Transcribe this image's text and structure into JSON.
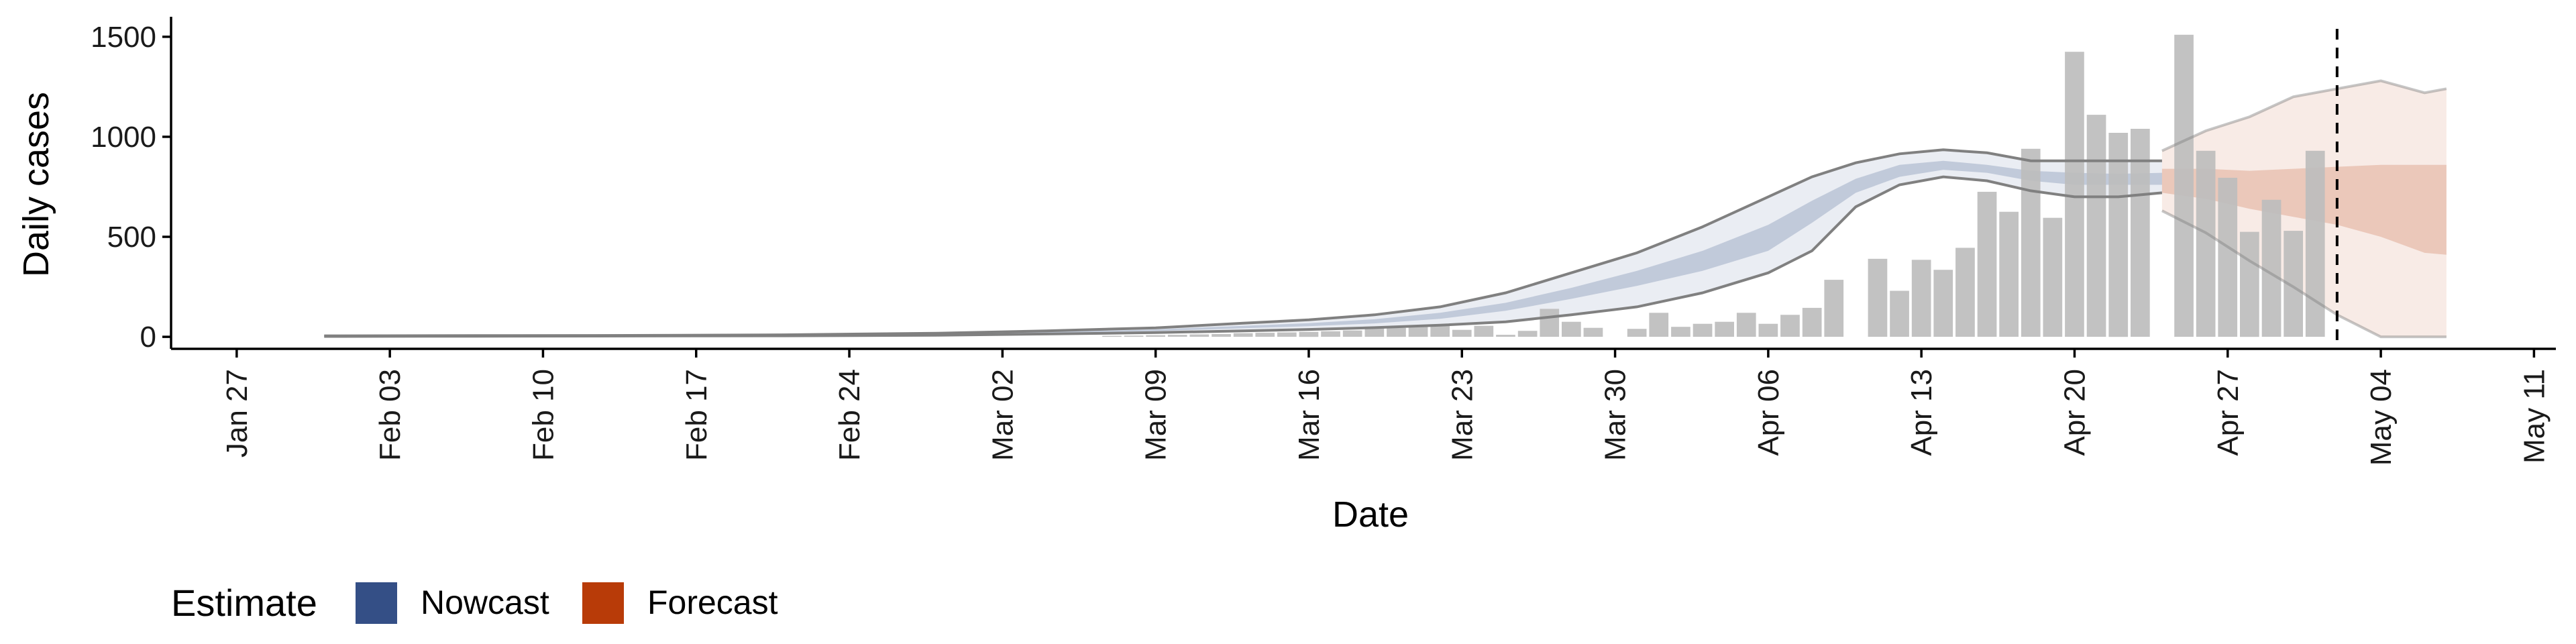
{
  "chart_data": {
    "type": "bar",
    "xlabel": "Date",
    "ylabel": "Daily cases",
    "ylim": [
      -60,
      1600
    ],
    "xlim": [
      "2020-01-24",
      "2020-05-12"
    ],
    "x_ticks": [
      "2020-01-27",
      "2020-02-03",
      "2020-02-10",
      "2020-02-17",
      "2020-02-24",
      "2020-03-02",
      "2020-03-09",
      "2020-03-16",
      "2020-03-23",
      "2020-03-30",
      "2020-04-06",
      "2020-04-13",
      "2020-04-20",
      "2020-04-27",
      "2020-05-04",
      "2020-05-11"
    ],
    "x_tick_labels": [
      "Jan 27",
      "Feb 03",
      "Feb 10",
      "Feb 17",
      "Feb 24",
      "Mar 02",
      "Mar 09",
      "Mar 16",
      "Mar 23",
      "Mar 30",
      "Apr 06",
      "Apr 13",
      "Apr 20",
      "Apr 27",
      "May 04",
      "May 11"
    ],
    "y_ticks": [
      0,
      500,
      1000,
      1500
    ],
    "y_tick_labels": [
      "0",
      "500",
      "1000",
      "1500"
    ],
    "grid": false,
    "legend": {
      "title": "Estimate",
      "position": "bottom-left",
      "items": [
        {
          "label": "Nowcast",
          "color": "#344f86"
        },
        {
          "label": "Forecast",
          "color": "#b83b08"
        }
      ]
    },
    "colors": {
      "bars": "#bdbdbd",
      "nowcast": "#344f86",
      "forecast": "#b83b08",
      "band_edge": "#808080",
      "axis": "#000000"
    },
    "observed_cases": {
      "x": [
        "2020-03-07",
        "2020-03-08",
        "2020-03-09",
        "2020-03-10",
        "2020-03-11",
        "2020-03-12",
        "2020-03-13",
        "2020-03-14",
        "2020-03-15",
        "2020-03-16",
        "2020-03-17",
        "2020-03-18",
        "2020-03-19",
        "2020-03-20",
        "2020-03-21",
        "2020-03-22",
        "2020-03-23",
        "2020-03-24",
        "2020-03-25",
        "2020-03-26",
        "2020-03-27",
        "2020-03-28",
        "2020-03-29",
        "2020-03-30",
        "2020-03-31",
        "2020-04-01",
        "2020-04-02",
        "2020-04-03",
        "2020-04-04",
        "2020-04-05",
        "2020-04-06",
        "2020-04-07",
        "2020-04-08",
        "2020-04-09",
        "2020-04-10",
        "2020-04-11",
        "2020-04-12",
        "2020-04-13",
        "2020-04-14",
        "2020-04-15",
        "2020-04-16",
        "2020-04-17",
        "2020-04-18",
        "2020-04-19",
        "2020-04-20",
        "2020-04-21",
        "2020-04-22",
        "2020-04-23",
        "2020-04-24",
        "2020-04-25",
        "2020-04-26",
        "2020-04-27",
        "2020-04-28",
        "2020-04-29",
        "2020-04-30",
        "2020-05-01",
        "2020-05-02"
      ],
      "y": [
        5,
        6,
        8,
        10,
        12,
        14,
        18,
        20,
        22,
        25,
        28,
        32,
        50,
        45,
        55,
        60,
        35,
        55,
        10,
        30,
        140,
        75,
        45,
        0,
        40,
        120,
        50,
        65,
        75,
        120,
        65,
        110,
        145,
        285,
        0,
        390,
        230,
        385,
        335,
        445,
        725,
        625,
        940,
        595,
        1425,
        1110,
        1020,
        1040,
        0,
        1510,
        930,
        795,
        525,
        685,
        530,
        930,
        0
      ]
    },
    "nowcast": {
      "dates": [
        "2020-01-31",
        "2020-02-07",
        "2020-02-14",
        "2020-02-21",
        "2020-02-28",
        "2020-03-04",
        "2020-03-09",
        "2020-03-13",
        "2020-03-16",
        "2020-03-19",
        "2020-03-22",
        "2020-03-25",
        "2020-03-28",
        "2020-03-31",
        "2020-04-03",
        "2020-04-06",
        "2020-04-08",
        "2020-04-10",
        "2020-04-12",
        "2020-04-14",
        "2020-04-16",
        "2020-04-18",
        "2020-04-20",
        "2020-04-22",
        "2020-04-24"
      ],
      "upper_90": [
        5,
        6,
        7,
        10,
        18,
        30,
        45,
        68,
        85,
        110,
        150,
        220,
        320,
        420,
        550,
        700,
        800,
        870,
        915,
        935,
        920,
        880,
        880,
        880,
        880
      ],
      "upper_50": [
        4,
        5,
        6,
        8,
        14,
        24,
        37,
        55,
        68,
        88,
        120,
        170,
        245,
        330,
        430,
        560,
        680,
        790,
        860,
        880,
        860,
        830,
        820,
        815,
        820
      ],
      "lower_50": [
        3,
        4,
        5,
        6,
        11,
        19,
        29,
        43,
        53,
        67,
        90,
        130,
        190,
        255,
        330,
        430,
        570,
        720,
        800,
        835,
        820,
        780,
        760,
        760,
        760
      ],
      "lower_90": [
        2,
        3,
        4,
        5,
        8,
        14,
        21,
        30,
        37,
        46,
        58,
        75,
        110,
        150,
        220,
        320,
        430,
        650,
        760,
        800,
        780,
        730,
        700,
        700,
        720
      ]
    },
    "forecast": {
      "dates": [
        "2020-04-24",
        "2020-04-26",
        "2020-04-28",
        "2020-04-30",
        "2020-05-02",
        "2020-05-04",
        "2020-05-06",
        "2020-05-07"
      ],
      "upper_90": [
        930,
        1030,
        1100,
        1200,
        1240,
        1280,
        1220,
        1240
      ],
      "upper_50": [
        840,
        840,
        830,
        840,
        850,
        860,
        860,
        860
      ],
      "lower_50": [
        720,
        690,
        640,
        600,
        560,
        500,
        420,
        410
      ],
      "lower_90": [
        630,
        520,
        380,
        250,
        110,
        0,
        0,
        0
      ]
    },
    "annotations": [
      {
        "type": "vline",
        "x": "2020-05-02",
        "style": "dashed"
      }
    ]
  }
}
